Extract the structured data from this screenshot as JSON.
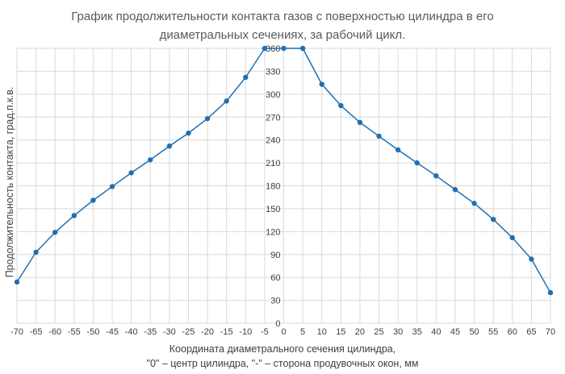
{
  "chart_data": {
    "type": "line",
    "title": "График продолжительности контакта газов с поверхностью цилиндра в его диаметральных сечениях, за рабочий цикл.",
    "title_lines": [
      "График продолжительности контакта газов с поверхностью цилиндра в его",
      "диаметральных сечениях, за рабочий цикл."
    ],
    "ylabel": "Продолжительность контакта, град.п.к.в.",
    "xlabel_lines": [
      "Координата диаметрального сечения цилиндра,",
      "\"0\" – центр цилиндра, \"-\" – сторона продувочных окон, мм"
    ],
    "categories": [
      "-70",
      "-65",
      "-60",
      "-55",
      "-50",
      "-45",
      "-40",
      "-35",
      "-30",
      "-25",
      "-20",
      "-15",
      "-10",
      "-5",
      "0",
      "5",
      "10",
      "15",
      "20",
      "25",
      "30",
      "35",
      "40",
      "45",
      "50",
      "55",
      "60",
      "65",
      "70"
    ],
    "y_ticks": [
      0,
      30,
      60,
      90,
      120,
      150,
      180,
      210,
      240,
      270,
      300,
      330,
      360
    ],
    "ylim": [
      0,
      360
    ],
    "grid": true,
    "series": [
      {
        "color": "#1f6fb2",
        "values": [
          54,
          93,
          119,
          141,
          161,
          179,
          197,
          214,
          232,
          249,
          268,
          291,
          322,
          360,
          360,
          360,
          313,
          285,
          263,
          245,
          227,
          210,
          193,
          175,
          157,
          136,
          112,
          84,
          40
        ]
      }
    ]
  }
}
